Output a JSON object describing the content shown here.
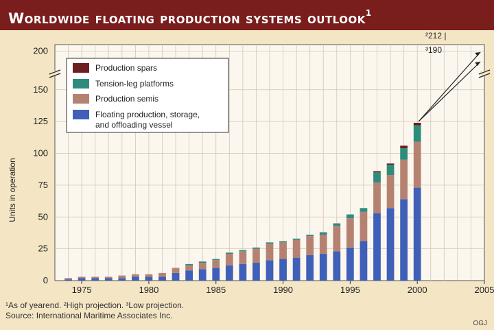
{
  "title": "Worldwide floating production systems outlook",
  "title_sup": "1",
  "footnotes": {
    "line1": "¹As of yearend. ²High projection. ³Low projection.",
    "line2": "Source: International Maritime Associates Inc."
  },
  "credit": "OGJ",
  "projection_labels": {
    "high": "²212 |",
    "low": "³190"
  },
  "colors": {
    "background": "#f4e6c4",
    "title_bar": "#7a1d1d",
    "fpso": "#3f5fb8",
    "semis": "#b58272",
    "tlp": "#2f8c7c",
    "spars": "#6b1f1f",
    "grid": "#cfc7b4"
  },
  "chart_data": {
    "type": "bar",
    "stacked": true,
    "ylabel": "Units in operation",
    "ylim": [
      0,
      210
    ],
    "yticks_lower": [
      0,
      25,
      50,
      75,
      100,
      125,
      150
    ],
    "ytick_upper": 200,
    "axis_break": true,
    "xlim": [
      1973,
      2005
    ],
    "xticks": [
      1975,
      1980,
      1985,
      1990,
      1995,
      2000,
      2005
    ],
    "grid": true,
    "legend_position": "top-left",
    "x": [
      1974,
      1975,
      1976,
      1977,
      1978,
      1979,
      1980,
      1981,
      1982,
      1983,
      1984,
      1985,
      1986,
      1987,
      1988,
      1989,
      1990,
      1991,
      1992,
      1993,
      1994,
      1995,
      1996,
      1997,
      1998,
      1999,
      2000
    ],
    "series": [
      {
        "name": "Production spars",
        "key": "spars",
        "values": [
          0,
          0,
          0,
          0,
          0,
          0,
          0,
          0,
          0,
          0,
          0,
          0,
          0,
          0,
          0,
          0,
          0,
          0,
          0,
          0,
          0,
          0,
          0,
          1,
          1,
          2,
          2
        ]
      },
      {
        "name": "Tension-leg platforms",
        "key": "tlp",
        "values": [
          0,
          0,
          0,
          0,
          0,
          0,
          0,
          0,
          0,
          1,
          1,
          1,
          1,
          1,
          1,
          1,
          1,
          1,
          1,
          2,
          2,
          3,
          3,
          8,
          8,
          9,
          13
        ]
      },
      {
        "name": "Production semis",
        "key": "semis",
        "values": [
          1,
          1,
          1,
          1,
          2,
          2,
          2,
          3,
          4,
          4,
          5,
          6,
          9,
          10,
          11,
          13,
          13,
          14,
          15,
          15,
          20,
          23,
          23,
          24,
          26,
          31,
          36
        ]
      },
      {
        "name": "Floating production, storage, and offloading vessel",
        "key": "fpso",
        "values": [
          1,
          2,
          2,
          2,
          2,
          3,
          3,
          3,
          6,
          8,
          9,
          10,
          12,
          13,
          14,
          16,
          17,
          18,
          20,
          21,
          23,
          26,
          31,
          53,
          57,
          64,
          73
        ]
      }
    ],
    "projections_2005": {
      "high": 212,
      "low": 190
    }
  }
}
